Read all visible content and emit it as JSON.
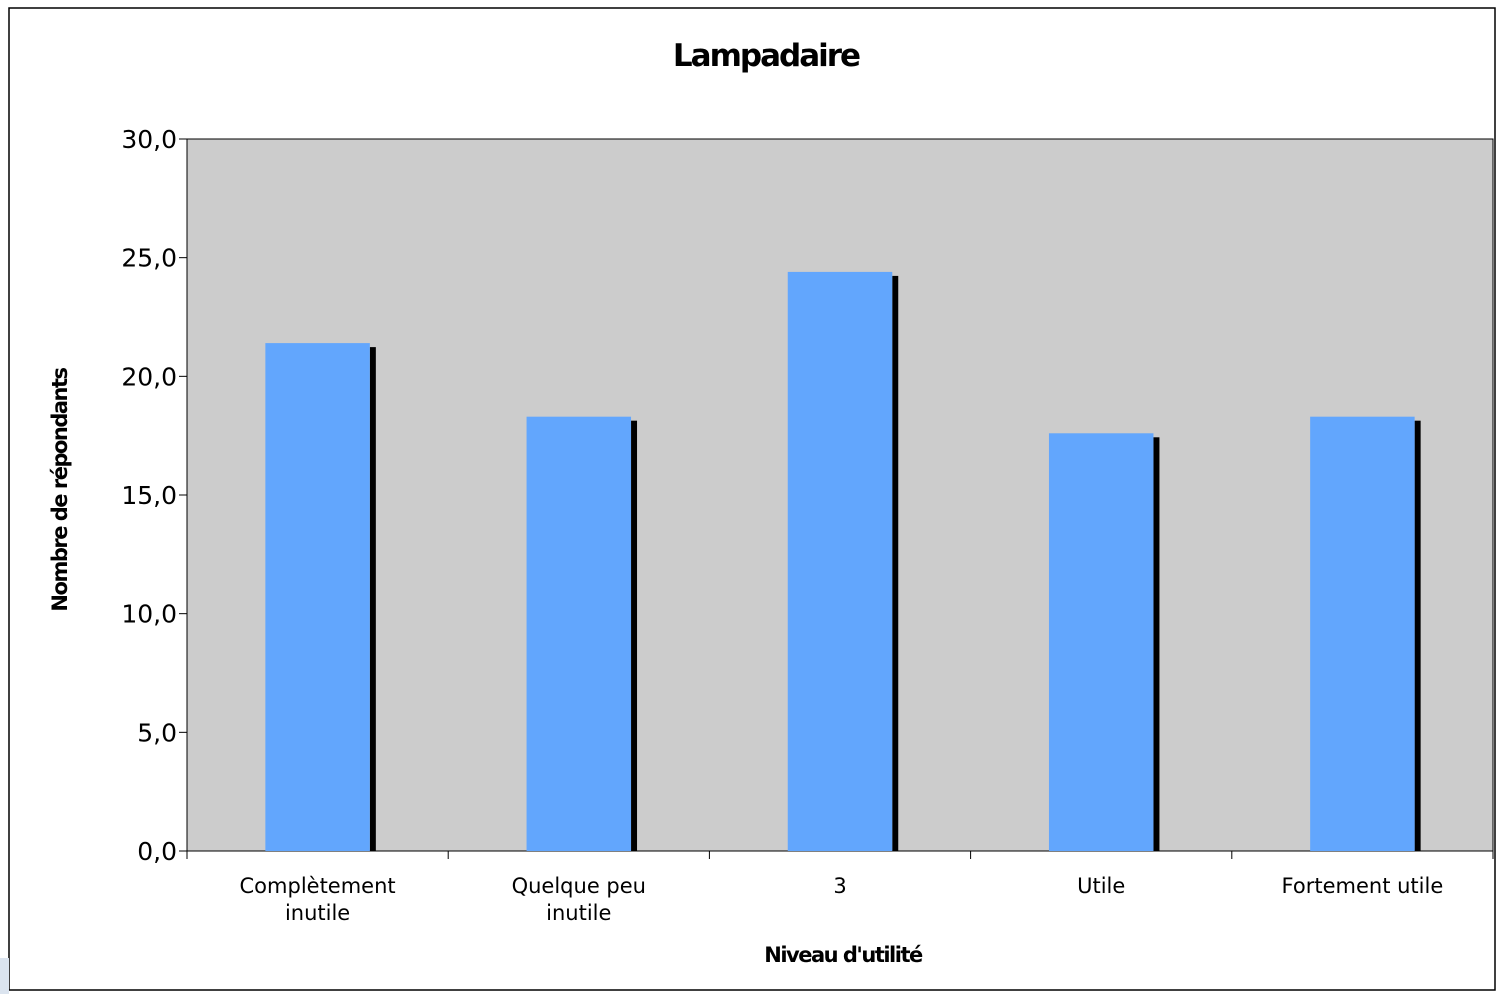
{
  "chart_data": {
    "type": "bar",
    "title": "Lampadaire",
    "xlabel": "Niveau d'utilité",
    "ylabel": "Nombre de répondants",
    "categories": [
      [
        "Complètement",
        "inutile"
      ],
      [
        "Quelque peu",
        "inutile"
      ],
      [
        "3"
      ],
      [
        "Utile"
      ],
      [
        "Fortement utile"
      ]
    ],
    "values": [
      21.4,
      18.3,
      24.4,
      17.6,
      18.3
    ],
    "ylim": [
      0,
      30
    ],
    "yticks": [
      0,
      5,
      10,
      15,
      20,
      25,
      30
    ],
    "ytick_labels": [
      "0,0",
      "5,0",
      "10,0",
      "15,0",
      "20,0",
      "25,0",
      "30,0"
    ],
    "grid": false,
    "legend": "none",
    "colors": {
      "bar": "#62a6fd",
      "bar_shadow": "#000000",
      "plot_background": "#cccccc",
      "frame": "#000000"
    }
  }
}
